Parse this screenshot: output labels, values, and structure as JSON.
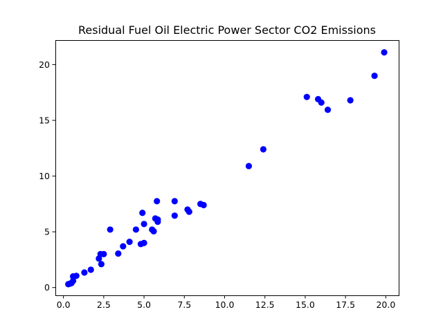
{
  "chart_data": {
    "type": "scatter",
    "title": "Residual Fuel Oil Electric Power Sector CO2 Emissions",
    "xlabel": "",
    "ylabel": "",
    "xlim": [
      -0.5,
      20.8
    ],
    "ylim": [
      -0.7,
      22.2
    ],
    "xticks": [
      0.0,
      2.5,
      5.0,
      7.5,
      10.0,
      12.5,
      15.0,
      17.5,
      20.0
    ],
    "xtick_labels": [
      "0.0",
      "2.5",
      "5.0",
      "7.5",
      "10.0",
      "12.5",
      "15.0",
      "17.5",
      "20.0"
    ],
    "yticks": [
      0,
      5,
      10,
      15,
      20
    ],
    "ytick_labels": [
      "0",
      "5",
      "10",
      "15",
      "20"
    ],
    "grid": false,
    "marker_color": "#0000ff",
    "points": [
      [
        0.3,
        0.3
      ],
      [
        0.4,
        0.35
      ],
      [
        0.5,
        0.4
      ],
      [
        0.6,
        0.6
      ],
      [
        0.6,
        1.0
      ],
      [
        0.8,
        1.05
      ],
      [
        1.3,
        1.35
      ],
      [
        1.7,
        1.6
      ],
      [
        2.2,
        2.6
      ],
      [
        2.3,
        3.0
      ],
      [
        2.35,
        2.1
      ],
      [
        2.5,
        3.0
      ],
      [
        2.9,
        5.2
      ],
      [
        3.4,
        3.05
      ],
      [
        3.7,
        3.7
      ],
      [
        4.1,
        4.1
      ],
      [
        4.5,
        5.2
      ],
      [
        4.8,
        3.9
      ],
      [
        4.9,
        6.7
      ],
      [
        5.0,
        4.0
      ],
      [
        5.0,
        5.7
      ],
      [
        5.5,
        5.2
      ],
      [
        5.6,
        5.05
      ],
      [
        5.7,
        6.2
      ],
      [
        5.8,
        7.75
      ],
      [
        5.85,
        5.9
      ],
      [
        5.85,
        6.1
      ],
      [
        6.9,
        7.75
      ],
      [
        6.9,
        6.45
      ],
      [
        7.7,
        7.0
      ],
      [
        7.8,
        6.8
      ],
      [
        8.5,
        7.5
      ],
      [
        8.7,
        7.4
      ],
      [
        11.5,
        10.9
      ],
      [
        12.4,
        12.4
      ],
      [
        15.1,
        17.1
      ],
      [
        15.8,
        16.9
      ],
      [
        16.0,
        16.6
      ],
      [
        16.4,
        15.95
      ],
      [
        17.8,
        16.8
      ],
      [
        19.3,
        19.0
      ],
      [
        19.9,
        21.1
      ]
    ]
  }
}
